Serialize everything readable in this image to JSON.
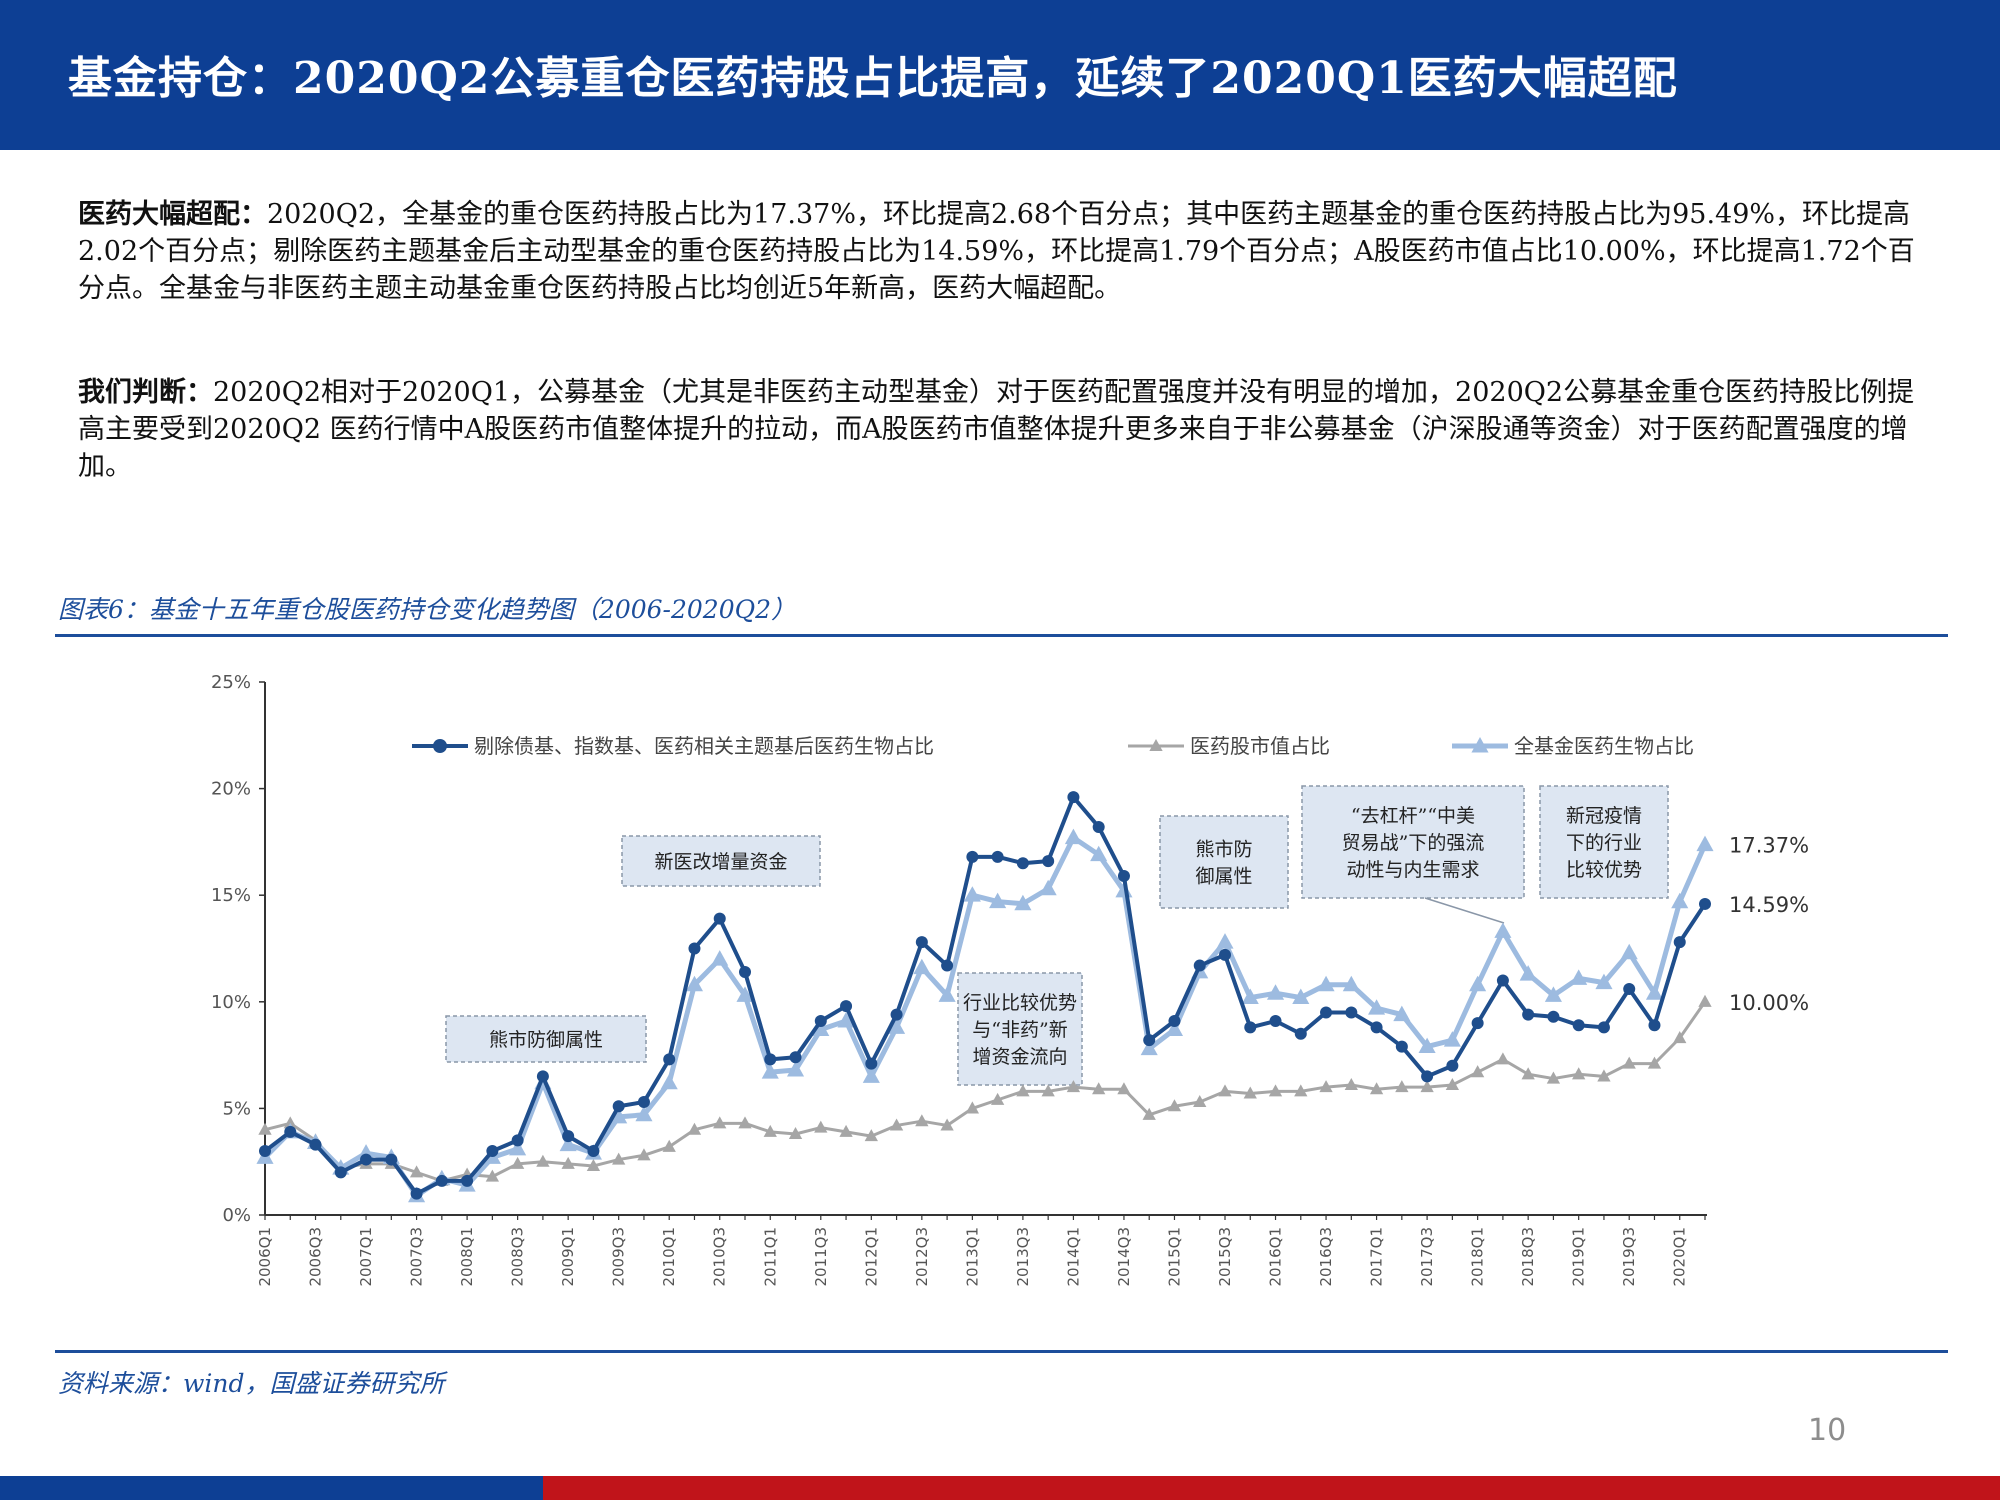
{
  "header": {
    "title": "基金持仓：2020Q2公募重仓医药持股占比提高，延续了2020Q1医药大幅超配"
  },
  "paragraphs": {
    "p1_label": "医药大幅超配：",
    "p1_text": "2020Q2，全基金的重仓医药持股占比为17.37%，环比提高2.68个百分点；其中医药主题基金的重仓医药持股占比为95.49%，环比提高2.02个百分点；剔除医药主题基金后主动型基金的重仓医药持股占比为14.59%，环比提高1.79个百分点；A股医药市值占比10.00%，环比提高1.72个百分点。全基金与非医药主题主动基金重仓医药持股占比均创近5年新高，医药大幅超配。",
    "p2_label": "我们判断：",
    "p2_text": "2020Q2相对于2020Q1，公募基金（尤其是非医药主动型基金）对于医药配置强度并没有明显的增加，2020Q2公募基金重仓医药持股比例提高主要受到2020Q2 医药行情中A股医药市值整体提升的拉动，而A股医药市值整体提升更多来自于非公募基金（沪深股通等资金）对于医药配置强度的增加。"
  },
  "figure": {
    "caption": "图表6：基金十五年重仓股医药持仓变化趋势图（2006-2020Q2）"
  },
  "source": "资料来源：wind，国盛证券研究所",
  "page_number": "10",
  "colors": {
    "header_bg": "#0d3f94",
    "series_dark": "#1f4e8c",
    "series_gray": "#a6a6a6",
    "series_light": "#9dbbe0",
    "footer_red": "#c0141a"
  },
  "chart_data": {
    "type": "line",
    "ylim": [
      0,
      25
    ],
    "y_ticks": [
      "0%",
      "5%",
      "10%",
      "15%",
      "20%",
      "25%"
    ],
    "x": [
      "2006Q1",
      "2006Q2",
      "2006Q3",
      "2006Q4",
      "2007Q1",
      "2007Q2",
      "2007Q3",
      "2007Q4",
      "2008Q1",
      "2008Q2",
      "2008Q3",
      "2008Q4",
      "2009Q1",
      "2009Q2",
      "2009Q3",
      "2009Q4",
      "2010Q1",
      "2010Q2",
      "2010Q3",
      "2010Q4",
      "2011Q1",
      "2011Q2",
      "2011Q3",
      "2011Q4",
      "2012Q1",
      "2012Q2",
      "2012Q3",
      "2012Q4",
      "2013Q1",
      "2013Q2",
      "2013Q3",
      "2013Q4",
      "2014Q1",
      "2014Q2",
      "2014Q3",
      "2014Q4",
      "2015Q1",
      "2015Q2",
      "2015Q3",
      "2015Q4",
      "2016Q1",
      "2016Q2",
      "2016Q3",
      "2016Q4",
      "2017Q1",
      "2017Q2",
      "2017Q3",
      "2017Q4",
      "2018Q1",
      "2018Q2",
      "2018Q3",
      "2018Q4",
      "2019Q1",
      "2019Q2",
      "2019Q3",
      "2019Q4",
      "2020Q1",
      "2020Q2"
    ],
    "x_tick_labels": [
      "2006Q1",
      "2006Q3",
      "2007Q1",
      "2007Q3",
      "2008Q1",
      "2008Q3",
      "2009Q1",
      "2009Q3",
      "2010Q1",
      "2010Q3",
      "2011Q1",
      "2011Q3",
      "2012Q1",
      "2012Q3",
      "2013Q1",
      "2013Q3",
      "2014Q1",
      "2014Q3",
      "2015Q1",
      "2015Q3",
      "2016Q1",
      "2016Q3",
      "2017Q1",
      "2017Q3",
      "2018Q1",
      "2018Q3",
      "2019Q1",
      "2019Q3",
      "2020Q1"
    ],
    "series": [
      {
        "name": "剔除债基、指数基、医药相关主题基后医药生物占比",
        "marker": "circle",
        "values": [
          3.0,
          3.9,
          3.3,
          2.0,
          2.6,
          2.6,
          1.0,
          1.6,
          1.6,
          3.0,
          3.5,
          6.5,
          3.7,
          3.0,
          5.1,
          5.3,
          7.3,
          12.5,
          13.9,
          11.4,
          7.3,
          7.4,
          9.1,
          9.8,
          7.1,
          9.4,
          12.8,
          11.7,
          16.8,
          16.8,
          16.5,
          16.6,
          19.6,
          18.2,
          15.9,
          8.2,
          9.1,
          11.7,
          12.2,
          8.8,
          9.1,
          8.5,
          9.5,
          9.5,
          8.8,
          7.9,
          6.5,
          7.0,
          9.0,
          11.0,
          9.4,
          9.3,
          8.9,
          8.8,
          10.6,
          8.9,
          12.8,
          14.59
        ]
      },
      {
        "name": "医药股市值占比",
        "marker": "triangle",
        "values": [
          4.0,
          4.3,
          3.5,
          2.2,
          2.4,
          2.4,
          2.0,
          1.6,
          1.9,
          1.8,
          2.4,
          2.5,
          2.4,
          2.3,
          2.6,
          2.8,
          3.2,
          4.0,
          4.3,
          4.3,
          3.9,
          3.8,
          4.1,
          3.9,
          3.7,
          4.2,
          4.4,
          4.2,
          5.0,
          5.4,
          5.8,
          5.8,
          6.0,
          5.9,
          5.9,
          4.7,
          5.1,
          5.3,
          5.8,
          5.7,
          5.8,
          5.8,
          6.0,
          6.1,
          5.9,
          6.0,
          6.0,
          6.1,
          6.7,
          7.3,
          6.6,
          6.4,
          6.6,
          6.5,
          7.1,
          7.1,
          8.3,
          10.0
        ]
      },
      {
        "name": "全基金医药生物占比",
        "marker": "triangle",
        "values": [
          2.7,
          3.9,
          3.4,
          2.2,
          2.9,
          2.7,
          0.9,
          1.7,
          1.4,
          2.7,
          3.1,
          6.2,
          3.3,
          2.9,
          4.6,
          4.7,
          6.2,
          10.8,
          12.0,
          10.3,
          6.7,
          6.8,
          8.7,
          9.1,
          6.5,
          8.8,
          11.6,
          10.3,
          15.0,
          14.7,
          14.6,
          15.3,
          17.7,
          16.9,
          15.2,
          7.8,
          8.7,
          11.4,
          12.8,
          10.2,
          10.4,
          10.2,
          10.8,
          10.8,
          9.7,
          9.4,
          7.9,
          8.2,
          10.8,
          13.3,
          11.3,
          10.3,
          11.1,
          10.9,
          12.3,
          10.4,
          14.69,
          17.37
        ]
      }
    ],
    "end_labels": [
      "17.37%",
      "14.59%",
      "10.00%"
    ],
    "annotations": [
      {
        "lines": [
          "熊市防御属性"
        ]
      },
      {
        "lines": [
          "新医改增量资金"
        ]
      },
      {
        "lines": [
          "行业比较优势",
          "与“非药”新",
          "增资金流向"
        ]
      },
      {
        "lines": [
          "熊市防",
          "御属性"
        ]
      },
      {
        "lines": [
          "“去杠杆”“中美",
          "贸易战”下的强流",
          "动性与内生需求"
        ]
      },
      {
        "lines": [
          "新冠疫情",
          "下的行业",
          "比较优势"
        ]
      }
    ],
    "legend_position": "top"
  }
}
